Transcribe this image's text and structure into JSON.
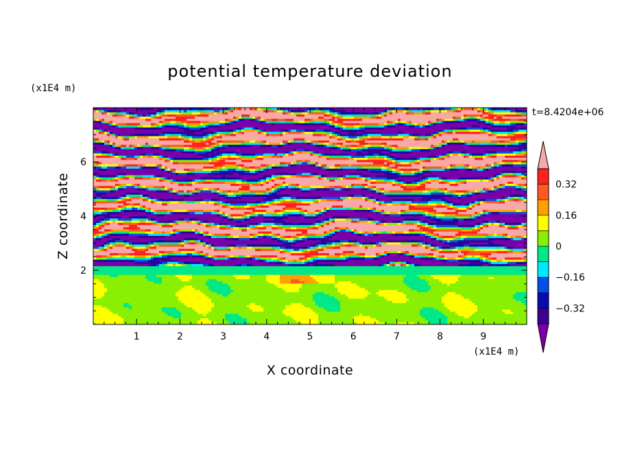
{
  "chart_data": {
    "type": "heatmap",
    "title": "potential temperature deviation",
    "xlabel": "X coordinate",
    "ylabel": "Z coordinate",
    "x_unit": "(x1E4 m)",
    "y_unit": "(x1E4 m)",
    "time_label": "t=8.4204e+06",
    "xlim": [
      0,
      10
    ],
    "ylim": [
      0,
      8
    ],
    "x_ticks": [
      "1",
      "2",
      "3",
      "4",
      "5",
      "6",
      "7",
      "8",
      "9"
    ],
    "y_ticks": [
      "2",
      "4",
      "6"
    ],
    "colorbar": {
      "levels": [
        -0.4,
        -0.32,
        -0.24,
        -0.16,
        -0.08,
        0,
        0.08,
        0.16,
        0.24,
        0.32,
        0.4
      ],
      "tick_labels": [
        "0.32",
        "0.16",
        "0",
        "−0.16",
        "−0.32"
      ],
      "colors": [
        "#7a00a8",
        "#3a0096",
        "#0a0ab0",
        "#0050e6",
        "#00e8ff",
        "#00e888",
        "#88f000",
        "#ffff00",
        "#ffa000",
        "#ff5a1e",
        "#ff2020",
        "#f8a8a8"
      ]
    }
  }
}
